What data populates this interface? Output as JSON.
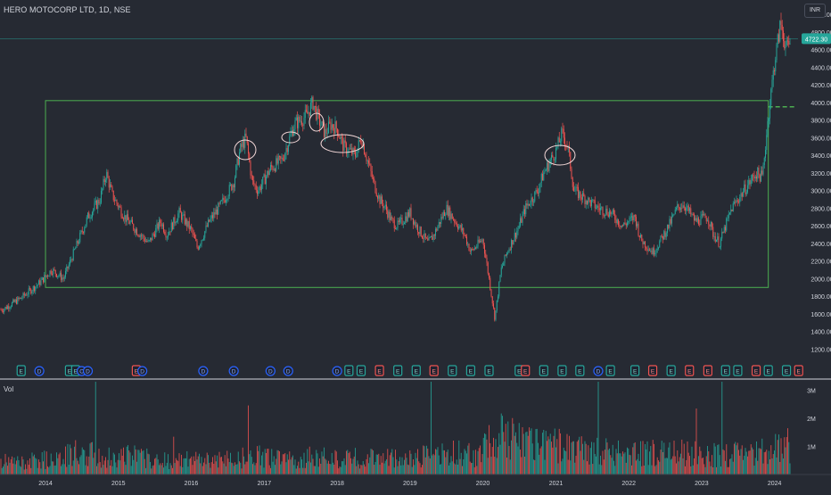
{
  "header": {
    "symbol": "HERO MOTOCORP LTD, 1D, NSE",
    "currency": "INR"
  },
  "volume_pane": {
    "title": "Vol"
  },
  "colors": {
    "background": "#262a33",
    "up": "#26a69a",
    "down": "#ef5350",
    "box": "#4caf50",
    "current_price_line": "#26a69a",
    "annotation": "#f2d7d7",
    "event_earnings_green": "#26a69a",
    "event_earnings_red": "#ef5350",
    "event_dividend_blue": "#2962ff"
  },
  "chart_data": [
    {
      "type": "line",
      "title": "HERO MOTOCORP LTD, 1D, NSE",
      "series": [
        {
          "name": "",
          "x": [
            "2013-06",
            "2013-09",
            "2013-12",
            "2014-02",
            "2014-04",
            "2014-06",
            "2014-08",
            "2014-10",
            "2014-11",
            "2014-12",
            "2015-02",
            "2015-04",
            "2015-06",
            "2015-08",
            "2015-09",
            "2015-11",
            "2016-01",
            "2016-02",
            "2016-04",
            "2016-06",
            "2016-08",
            "2016-09",
            "2016-10",
            "2016-11",
            "2016-12",
            "2017-02",
            "2017-04",
            "2017-06",
            "2017-08",
            "2017-09",
            "2017-10",
            "2017-11",
            "2017-12",
            "2018-01",
            "2018-02",
            "2018-04",
            "2018-05",
            "2018-06",
            "2018-07",
            "2018-08",
            "2018-09",
            "2018-10",
            "2018-11",
            "2019-01",
            "2019-02",
            "2019-04",
            "2019-05",
            "2019-07",
            "2019-08",
            "2019-10",
            "2019-11",
            "2020-01",
            "2020-02",
            "2020-03",
            "2020-04",
            "2020-05",
            "2020-07",
            "2020-08",
            "2020-10",
            "2020-11",
            "2021-01",
            "2021-02",
            "2021-03",
            "2021-04",
            "2021-06",
            "2021-08",
            "2021-10",
            "2021-12",
            "2022-02",
            "2022-03",
            "2022-05",
            "2022-06",
            "2022-08",
            "2022-09",
            "2022-10",
            "2022-12",
            "2023-02",
            "2023-03",
            "2023-04",
            "2023-06",
            "2023-08",
            "2023-09",
            "2023-10",
            "2023-11",
            "2023-12",
            "2024-01",
            "2024-02",
            "2024-03",
            "2024-04"
          ],
          "values": [
            1650,
            1780,
            1950,
            2100,
            2000,
            2350,
            2700,
            2900,
            3200,
            2950,
            2700,
            2550,
            2400,
            2650,
            2500,
            2750,
            2550,
            2350,
            2650,
            2850,
            3100,
            3450,
            3600,
            3100,
            3000,
            3250,
            3350,
            3750,
            3850,
            4000,
            3800,
            3650,
            3750,
            3700,
            3500,
            3400,
            3600,
            3350,
            3100,
            2900,
            2800,
            2650,
            2600,
            2750,
            2600,
            2400,
            2500,
            2800,
            2700,
            2500,
            2300,
            2450,
            2000,
            1550,
            2100,
            2300,
            2600,
            2800,
            3000,
            3200,
            3450,
            3650,
            3500,
            3000,
            2900,
            2800,
            2750,
            2600,
            2700,
            2450,
            2300,
            2400,
            2650,
            2800,
            2850,
            2650,
            2700,
            2500,
            2400,
            2800,
            3000,
            3100,
            3200,
            3150,
            3850,
            4450,
            4900,
            4600,
            4722
          ]
        }
      ],
      "xlabel": "",
      "ylabel": "",
      "x_tick_labels": [
        "2014",
        "2015",
        "2016",
        "2017",
        "2018",
        "2019",
        "2020",
        "2021",
        "2022",
        "2023",
        "2024"
      ],
      "y_tick_labels": [
        "1200.00",
        "1400.00",
        "1600.00",
        "1800.00",
        "2000.00",
        "2200.00",
        "2400.00",
        "2600.00",
        "2800.00",
        "3000.00",
        "3200.00",
        "3400.00",
        "3600.00",
        "3800.00",
        "4000.00",
        "4200.00",
        "4400.00",
        "4600.00",
        "4800.00",
        "5000.00"
      ],
      "ylim": [
        1200,
        5000
      ],
      "grid": false,
      "current_price": 4722.3,
      "current_price_label": "4722.30",
      "range_box": {
        "x": [
          "2014-01",
          "2023-12"
        ],
        "y": [
          1900,
          4020
        ]
      },
      "dashed_level": {
        "y": 3950
      },
      "event_markers": [
        {
          "x": "2013-09",
          "label": "E",
          "kind": "green"
        },
        {
          "x": "2013-12",
          "label": "D",
          "kind": "blue"
        },
        {
          "x": "2014-05",
          "label": "E",
          "kind": "green"
        },
        {
          "x": "2014-06",
          "label": "E",
          "kind": "green"
        },
        {
          "x": "2014-07",
          "label": "C",
          "kind": "blue"
        },
        {
          "x": "2014-08",
          "label": "D",
          "kind": "blue"
        },
        {
          "x": "2015-04",
          "label": "E",
          "kind": "red"
        },
        {
          "x": "2015-05",
          "label": "D",
          "kind": "blue"
        },
        {
          "x": "2016-03",
          "label": "D",
          "kind": "blue"
        },
        {
          "x": "2016-08",
          "label": "D",
          "kind": "blue"
        },
        {
          "x": "2017-02",
          "label": "D",
          "kind": "blue"
        },
        {
          "x": "2017-05",
          "label": "D",
          "kind": "blue"
        },
        {
          "x": "2018-01",
          "label": "D",
          "kind": "blue"
        },
        {
          "x": "2018-03",
          "label": "E",
          "kind": "green"
        },
        {
          "x": "2018-05",
          "label": "E",
          "kind": "green"
        },
        {
          "x": "2018-08",
          "label": "E",
          "kind": "red"
        },
        {
          "x": "2018-11",
          "label": "E",
          "kind": "green"
        },
        {
          "x": "2019-02",
          "label": "E",
          "kind": "green"
        },
        {
          "x": "2019-05",
          "label": "E",
          "kind": "red"
        },
        {
          "x": "2019-08",
          "label": "E",
          "kind": "green"
        },
        {
          "x": "2019-11",
          "label": "E",
          "kind": "green"
        },
        {
          "x": "2020-02",
          "label": "E",
          "kind": "green"
        },
        {
          "x": "2020-07",
          "label": "E",
          "kind": "green"
        },
        {
          "x": "2020-08",
          "label": "E",
          "kind": "red"
        },
        {
          "x": "2020-11",
          "label": "E",
          "kind": "green"
        },
        {
          "x": "2021-02",
          "label": "E",
          "kind": "green"
        },
        {
          "x": "2021-05",
          "label": "E",
          "kind": "green"
        },
        {
          "x": "2021-08",
          "label": "D",
          "kind": "blue"
        },
        {
          "x": "2021-10",
          "label": "E",
          "kind": "green"
        },
        {
          "x": "2022-02",
          "label": "E",
          "kind": "green"
        },
        {
          "x": "2022-05",
          "label": "E",
          "kind": "red"
        },
        {
          "x": "2022-08",
          "label": "E",
          "kind": "green"
        },
        {
          "x": "2022-11",
          "label": "E",
          "kind": "red"
        },
        {
          "x": "2023-02",
          "label": "E",
          "kind": "red"
        },
        {
          "x": "2023-05",
          "label": "E",
          "kind": "green"
        },
        {
          "x": "2023-07",
          "label": "E",
          "kind": "green"
        },
        {
          "x": "2023-10",
          "label": "E",
          "kind": "red"
        },
        {
          "x": "2023-12",
          "label": "E",
          "kind": "green"
        },
        {
          "x": "2024-03",
          "label": "E",
          "kind": "green"
        },
        {
          "x": "2024-05",
          "label": "E",
          "kind": "red"
        }
      ]
    },
    {
      "type": "bar",
      "title": "Vol",
      "y_tick_labels": [
        "1M",
        "2M",
        "3M"
      ],
      "ylim": [
        0,
        3300000
      ],
      "series": [
        {
          "name": "",
          "x": [
            "2013-06",
            "2013-09",
            "2013-12",
            "2014-03",
            "2014-06",
            "2014-09",
            "2014-12",
            "2015-03",
            "2015-06",
            "2015-09",
            "2015-12",
            "2016-03",
            "2016-06",
            "2016-09",
            "2016-12",
            "2017-03",
            "2017-06",
            "2017-09",
            "2017-12",
            "2018-03",
            "2018-06",
            "2018-09",
            "2018-12",
            "2019-03",
            "2019-06",
            "2019-09",
            "2019-12",
            "2020-03",
            "2020-06",
            "2020-09",
            "2020-12",
            "2021-03",
            "2021-06",
            "2021-09",
            "2021-12",
            "2022-03",
            "2022-06",
            "2022-09",
            "2022-12",
            "2023-03",
            "2023-06",
            "2023-09",
            "2023-12",
            "2024-03"
          ],
          "values": [
            550000,
            500000,
            600000,
            650000,
            900000,
            850000,
            700000,
            800000,
            650000,
            600000,
            600000,
            650000,
            600000,
            700000,
            750000,
            650000,
            600000,
            750000,
            650000,
            700000,
            650000,
            750000,
            650000,
            750000,
            800000,
            900000,
            850000,
            1500000,
            1700000,
            1300000,
            1200000,
            1250000,
            950000,
            950000,
            850000,
            900000,
            950000,
            900000,
            850000,
            800000,
            850000,
            850000,
            1000000,
            1200000
          ]
        }
      ]
    }
  ]
}
